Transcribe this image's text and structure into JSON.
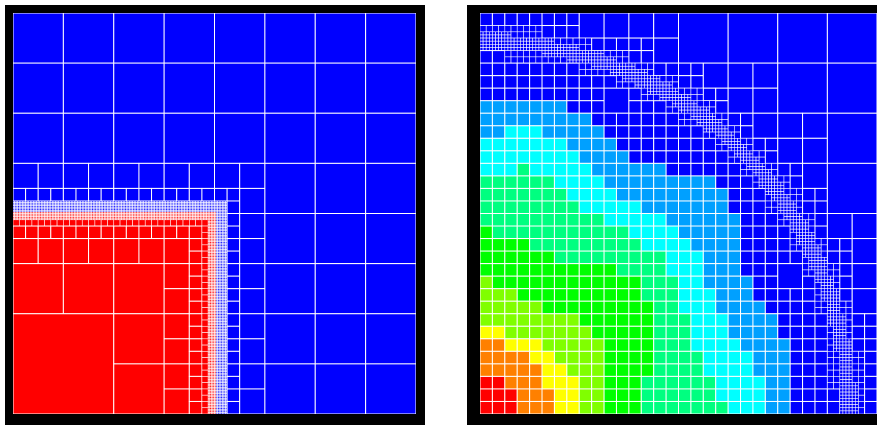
{
  "colors": {
    "frame": "#000000",
    "grid_line": "#ffffff",
    "region_low": "#0000ff",
    "region_high": "#ff0000",
    "scale": [
      "#0000ff",
      "#00a0ff",
      "#00ffff",
      "#00ff80",
      "#00ff00",
      "#80ff00",
      "#ffff00",
      "#ff8000",
      "#ff0000"
    ]
  },
  "panels": [
    {
      "id": "left",
      "description_name": "adaptive-mesh-step-field"
    },
    {
      "id": "right",
      "description_name": "adaptive-mesh-smooth-field"
    }
  ]
}
